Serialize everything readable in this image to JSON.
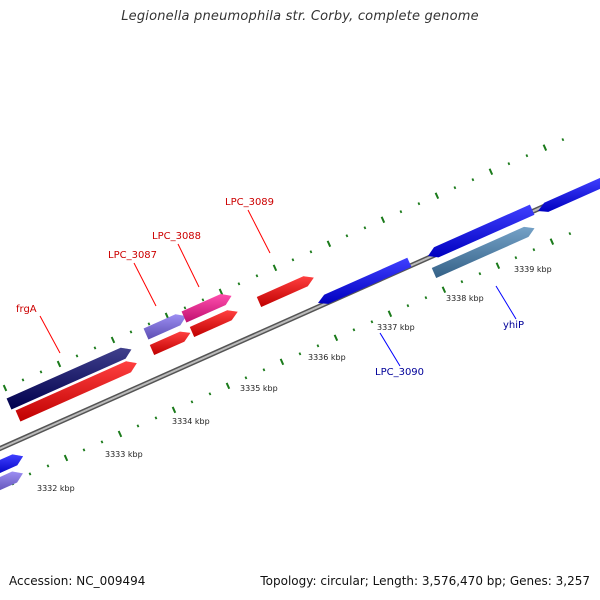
{
  "title": "Legionella pneumophila str. Corby, complete genome",
  "footer": {
    "accession": "Accession: NC_009494",
    "summary": "Topology: circular; Length: 3,576,470 bp; Genes: 3,257"
  },
  "colors": {
    "backbone": "#888888",
    "tick": "#1a7a1a",
    "forward_gene": "#ff0000",
    "forward_pink": "#ff1493",
    "forward_navy": "#000066",
    "reverse_gene": "#0000ff",
    "reverse_steel": "#4682b4",
    "reverse_purple": "#7b68ee",
    "forward_label": "#cc0000",
    "reverse_label": "#000099"
  },
  "scale": {
    "unit": "kbp",
    "tick_labels": [
      "3332 kbp",
      "3333 kbp",
      "3334 kbp",
      "3335 kbp",
      "3336 kbp",
      "3337 kbp",
      "3338 kbp",
      "3339 kbp"
    ]
  },
  "gene_labels": [
    {
      "name": "frgA",
      "strand": "forward"
    },
    {
      "name": "LPC_3087",
      "strand": "forward"
    },
    {
      "name": "LPC_3088",
      "strand": "forward"
    },
    {
      "name": "LPC_3089",
      "strand": "forward"
    },
    {
      "name": "LPC_3090",
      "strand": "reverse"
    },
    {
      "name": "yhiP",
      "strand": "reverse"
    }
  ]
}
